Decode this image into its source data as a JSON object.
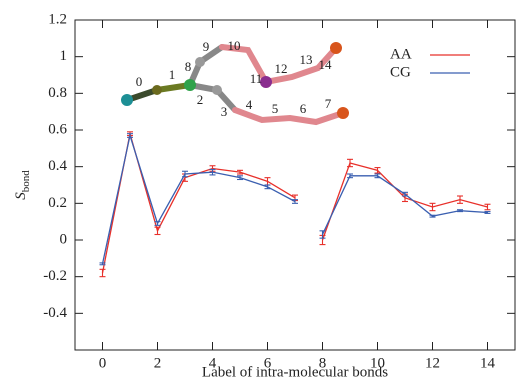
{
  "chart_data": {
    "type": "line",
    "xlabel": "Label of intra-molecular bonds",
    "ylabel": {
      "main": "S",
      "sub": "bond"
    },
    "x": [
      0,
      1,
      2,
      3,
      4,
      5,
      6,
      7,
      null,
      8,
      9,
      10,
      11,
      12,
      13,
      14
    ],
    "series": [
      {
        "name": "AA",
        "color": "#e8302a",
        "values": [
          -0.18,
          0.58,
          0.05,
          0.34,
          0.39,
          0.37,
          0.32,
          0.23,
          null,
          0.0,
          0.42,
          0.38,
          0.23,
          0.18,
          0.22,
          0.18
        ],
        "errors": [
          0.02,
          0.01,
          0.02,
          0.02,
          0.015,
          0.01,
          0.02,
          0.015,
          null,
          0.025,
          0.02,
          0.015,
          0.02,
          0.02,
          0.02,
          0.015
        ]
      },
      {
        "name": "CG",
        "color": "#3a5fb0",
        "values": [
          -0.13,
          0.57,
          0.09,
          0.36,
          0.37,
          0.34,
          0.29,
          0.21,
          null,
          0.03,
          0.35,
          0.35,
          0.25,
          0.13,
          0.16,
          0.15
        ],
        "errors": [
          0.005,
          0.01,
          0.01,
          0.015,
          0.015,
          0.01,
          0.01,
          0.01,
          null,
          0.02,
          0.01,
          0.01,
          0.01,
          0.005,
          0.005,
          0.005
        ]
      }
    ],
    "xlim": [
      -1,
      15
    ],
    "ylim": [
      -0.6,
      1.2
    ],
    "xticks": [
      0,
      2,
      4,
      6,
      8,
      10,
      12,
      14
    ],
    "yticks": [
      -0.4,
      -0.2,
      0,
      0.2,
      0.4,
      0.6,
      0.8,
      1,
      1.2
    ],
    "legend": "upper right",
    "inset_labels": [
      "0",
      "1",
      "2",
      "3",
      "4",
      "5",
      "6",
      "7",
      "8",
      "9",
      "10",
      "11",
      "12",
      "13",
      "14"
    ]
  }
}
